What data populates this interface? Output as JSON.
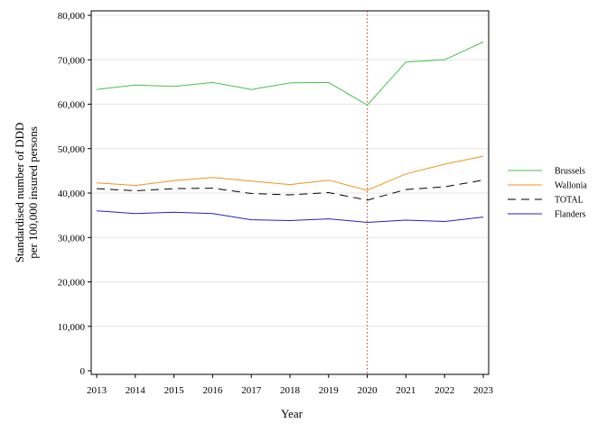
{
  "chart_data": {
    "type": "line",
    "xlabel": "Year",
    "ylabel_lines": [
      "Standardised number of DDD",
      "per 100,000 insured persons"
    ],
    "x": [
      2013,
      2014,
      2015,
      2016,
      2017,
      2018,
      2019,
      2020,
      2021,
      2022,
      2023
    ],
    "x_tick_labels": [
      "2013",
      "2014",
      "2015",
      "2016",
      "2017",
      "2018",
      "2019",
      "2020",
      "2021",
      "2022",
      "2023"
    ],
    "ylim": [
      0,
      80000
    ],
    "y_ticks": [
      0,
      10000,
      20000,
      30000,
      40000,
      50000,
      60000,
      70000,
      80000
    ],
    "y_tick_labels": [
      "0",
      "10,000",
      "20,000",
      "30,000",
      "40,000",
      "50,000",
      "60,000",
      "70,000",
      "80,000"
    ],
    "grid": "horizontal",
    "reference_line": {
      "x": 2020,
      "style": "dotted",
      "color": "#c0392b"
    },
    "legend_position": "right",
    "series": [
      {
        "name": "Brussels",
        "color": "#44c244",
        "dash": "solid",
        "values": [
          63300,
          64300,
          64000,
          64900,
          63300,
          64800,
          64900,
          59800,
          69500,
          70000,
          74000
        ]
      },
      {
        "name": "Wallonia",
        "color": "#f29418",
        "dash": "solid",
        "values": [
          42300,
          41700,
          42800,
          43500,
          42700,
          41900,
          42900,
          40600,
          44300,
          46500,
          48300
        ]
      },
      {
        "name": "TOTAL",
        "color": "#000000",
        "dash": "dashed",
        "values": [
          41000,
          40500,
          41000,
          41100,
          39900,
          39600,
          40100,
          38400,
          40800,
          41400,
          42900
        ]
      },
      {
        "name": "Flanders",
        "color": "#2222cc",
        "dash": "solid",
        "values": [
          36000,
          35400,
          35700,
          35400,
          34000,
          33800,
          34200,
          33400,
          33900,
          33600,
          34600
        ]
      }
    ]
  }
}
